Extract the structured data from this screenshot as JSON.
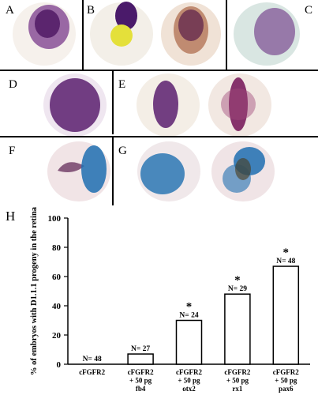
{
  "panels": {
    "a": "A",
    "b": "B",
    "c": "C",
    "d": "D",
    "e": "E",
    "f": "F",
    "g": "G",
    "h": "H"
  },
  "colors": {
    "stain_purple": "#5a1e6e",
    "stain_blue": "#1f6fb0",
    "embryo_bg": "#f4eee6",
    "yellow": "#e8e040"
  },
  "chart_data": {
    "type": "bar",
    "categories": [
      [
        "cFGFR2"
      ],
      [
        "cFGFR2",
        "+ 50 pg",
        "fb4"
      ],
      [
        "cFGFR2",
        "+ 50 pg",
        "otx2"
      ],
      [
        "cFGFR2",
        "+ 50 pg",
        "rx1"
      ],
      [
        "cFGFR2",
        "+ 50 pg",
        "pax6"
      ]
    ],
    "values": [
      0,
      7,
      30,
      48,
      67
    ],
    "bar_labels": [
      "N= 48",
      "N= 27",
      "N= 24",
      "N= 29",
      "N= 48"
    ],
    "significant": [
      "",
      "",
      "*",
      "*",
      "*"
    ],
    "ylabel": "% of embryos with D1.1.1 progeny in the retina",
    "ylim": [
      0,
      100
    ],
    "yticks": [
      "0",
      "20",
      "40",
      "60",
      "80",
      "100"
    ]
  }
}
